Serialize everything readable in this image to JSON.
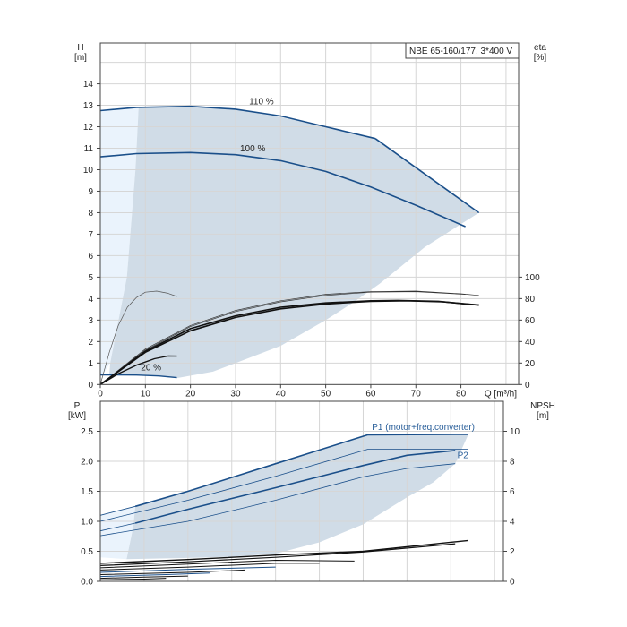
{
  "chart_data": [
    {
      "type": "line",
      "id": "head",
      "title": "NBE 65-160/177, 3*400 V",
      "ylabel": "H",
      "yunit": "[m]",
      "y2label": "eta",
      "y2unit": "[%]",
      "xlabel": "Q [m³/h]",
      "xlim": [
        0,
        92.8
      ],
      "ylim": [
        0,
        15.9
      ],
      "y2lim": [
        0,
        318
      ],
      "xticks": [
        0,
        10,
        20,
        30,
        40,
        50,
        60,
        70,
        80
      ],
      "yticks": [
        0,
        1,
        2,
        3,
        4,
        5,
        6,
        7,
        8,
        9,
        10,
        11,
        12,
        13,
        14
      ],
      "y2ticks": [
        0,
        20,
        40,
        60,
        80,
        100
      ],
      "grid": true,
      "regions": [
        {
          "name": "min-flow-region",
          "color": "#eaf3fc",
          "points": [
            [
              0,
              0.45
            ],
            [
              0,
              12.75
            ],
            [
              8.5,
              12.9
            ],
            [
              7.8,
              10
            ],
            [
              5.9,
              5
            ],
            [
              2.2,
              1
            ],
            [
              0.5,
              0.45
            ]
          ]
        },
        {
          "name": "operating-region",
          "color": "#d0dce7",
          "points": [
            [
              8.5,
              12.9
            ],
            [
              20,
              12.95
            ],
            [
              30,
              12.8
            ],
            [
              40,
              12.45
            ],
            [
              50,
              12.0
            ],
            [
              61,
              11.45
            ],
            [
              84,
              8.0
            ],
            [
              72,
              6.4
            ],
            [
              62,
              4.7
            ],
            [
              56,
              3.8
            ],
            [
              50,
              3.0
            ],
            [
              40,
              1.8
            ],
            [
              30,
              1.0
            ],
            [
              25,
              0.6
            ],
            [
              17,
              0.3
            ],
            [
              12,
              0.4
            ],
            [
              2,
              0.45
            ],
            [
              2.2,
              1
            ],
            [
              5.9,
              5
            ],
            [
              7.8,
              10
            ]
          ]
        }
      ],
      "series": [
        {
          "name": "110 %",
          "axis": "H",
          "color": "#1a4f8a",
          "width": 1.6,
          "label_at": [
            33,
            13.05
          ],
          "points": [
            [
              0,
              12.75
            ],
            [
              8,
              12.9
            ],
            [
              20,
              12.95
            ],
            [
              30,
              12.82
            ],
            [
              40,
              12.5
            ],
            [
              50,
              12.0
            ],
            [
              61,
              11.45
            ]
          ]
        },
        {
          "name": "max-power-limit",
          "axis": "H",
          "color": "#1a4f8a",
          "width": 1.6,
          "points": [
            [
              61,
              11.45
            ],
            [
              84,
              8.0
            ]
          ]
        },
        {
          "name": "100 %",
          "axis": "H",
          "color": "#1a4f8a",
          "width": 1.6,
          "label_at": [
            31,
            10.85
          ],
          "points": [
            [
              0,
              10.6
            ],
            [
              8,
              10.75
            ],
            [
              20,
              10.8
            ],
            [
              30,
              10.7
            ],
            [
              40,
              10.42
            ],
            [
              50,
              9.92
            ],
            [
              60,
              9.2
            ],
            [
              70,
              8.35
            ],
            [
              81,
              7.35
            ]
          ]
        },
        {
          "name": "20 %",
          "axis": "H",
          "color": "#1a4f8a",
          "width": 1.4,
          "label_at": [
            9,
            0.65
          ],
          "points": [
            [
              0,
              0.45
            ],
            [
              8,
              0.44
            ],
            [
              13,
              0.4
            ],
            [
              17,
              0.32
            ]
          ]
        },
        {
          "name": "eta-min-speed",
          "axis": "eta",
          "color": "#555",
          "width": 0.7,
          "points": [
            [
              0,
              0
            ],
            [
              2,
              30
            ],
            [
              4,
              55
            ],
            [
              6,
              72
            ],
            [
              8,
              81
            ],
            [
              10,
              86
            ],
            [
              12.5,
              87
            ],
            [
              15,
              85
            ],
            [
              17,
              82
            ]
          ]
        },
        {
          "name": "eta-20",
          "axis": "eta",
          "color": "#111",
          "width": 1.4,
          "points": [
            [
              0,
              0
            ],
            [
              4,
              10
            ],
            [
              8,
              18
            ],
            [
              12,
              24
            ],
            [
              15,
              26.5
            ],
            [
              17,
              26.4
            ]
          ]
        },
        {
          "name": "eta-upper-thin",
          "axis": "eta",
          "color": "#333",
          "width": 0.7,
          "points": [
            [
              0,
              0
            ],
            [
              10,
              33
            ],
            [
              20,
              55
            ],
            [
              30,
              69
            ],
            [
              40,
              78
            ],
            [
              50,
              84
            ],
            [
              60,
              86.5
            ],
            [
              70,
              87
            ],
            [
              80,
              84.5
            ],
            [
              84,
              83
            ]
          ]
        },
        {
          "name": "eta-upper-thin-2",
          "axis": "eta",
          "color": "#333",
          "width": 0.7,
          "points": [
            [
              0,
              0
            ],
            [
              10,
              32
            ],
            [
              20,
              54
            ],
            [
              30,
              68
            ],
            [
              40,
              77
            ],
            [
              50,
              83
            ],
            [
              60,
              86
            ],
            [
              70,
              86.5
            ],
            [
              81,
              84
            ]
          ]
        },
        {
          "name": "eta-100",
          "axis": "eta",
          "color": "#111",
          "width": 1.6,
          "points": [
            [
              0,
              0
            ],
            [
              10,
              31
            ],
            [
              20,
              52
            ],
            [
              30,
              64
            ],
            [
              40,
              72
            ],
            [
              50,
              76
            ],
            [
              60,
              78
            ],
            [
              66,
              78.3
            ],
            [
              75,
              77.5
            ],
            [
              81,
              75
            ],
            [
              84,
              74
            ]
          ]
        },
        {
          "name": "eta-110",
          "axis": "eta",
          "color": "#111",
          "width": 1.6,
          "points": [
            [
              0,
              0
            ],
            [
              10,
              30
            ],
            [
              20,
              50
            ],
            [
              30,
              62.5
            ],
            [
              40,
              70.5
            ],
            [
              50,
              75
            ],
            [
              60,
              77.5
            ],
            [
              68,
              78
            ],
            [
              76,
              77
            ],
            [
              84,
              74
            ]
          ]
        }
      ]
    },
    {
      "type": "line",
      "id": "power",
      "ylabel": "P",
      "yunit": "[kW]",
      "y2label": "NPSH",
      "y2unit": "[m]",
      "xlim": [
        0,
        92
      ],
      "ylim": [
        0,
        3.0
      ],
      "y2lim": [
        0,
        12
      ],
      "yticks": [
        "0.0",
        "0.5",
        "1.0",
        "1.5",
        "2.0",
        "2.5"
      ],
      "y2ticks": [
        0,
        2,
        4,
        6,
        8,
        10
      ],
      "grid": true,
      "regions": [
        {
          "name": "min-flow-region",
          "color": "#eaf3fc",
          "points": [
            [
              0,
              1.1
            ],
            [
              8,
              1.25
            ],
            [
              7.5,
              0.9
            ],
            [
              6,
              0.37
            ],
            [
              0,
              0.4
            ]
          ]
        },
        {
          "name": "operating-region",
          "color": "#d0dce7",
          "points": [
            [
              8,
              1.25
            ],
            [
              20,
              1.5
            ],
            [
              40,
              1.96
            ],
            [
              61,
              2.44
            ],
            [
              84,
              2.45
            ],
            [
              81,
              1.96
            ],
            [
              76,
              1.65
            ],
            [
              70,
              1.4
            ],
            [
              60,
              0.95
            ],
            [
              50,
              0.65
            ],
            [
              40,
              0.46
            ],
            [
              30,
              0.41
            ],
            [
              20,
              0.39
            ],
            [
              6,
              0.37
            ],
            [
              7.5,
              0.9
            ]
          ]
        }
      ],
      "series": [
        {
          "name": "P1 (motor+freq.converter)",
          "axis": "P",
          "color": "#1a4f8a",
          "width": 1.6,
          "label_at": [
            62,
            2.52
          ],
          "points": [
            [
              8,
              1.25
            ],
            [
              20,
              1.5
            ],
            [
              40,
              1.96
            ],
            [
              61,
              2.44
            ],
            [
              84,
              2.45
            ]
          ]
        },
        {
          "name": "p1-left-thin",
          "axis": "P",
          "color": "#1a4f8a",
          "width": 0.8,
          "points": [
            [
              0,
              1.1
            ],
            [
              8,
              1.25
            ]
          ]
        },
        {
          "name": "p1-lower-thin",
          "axis": "P",
          "color": "#1a4f8a",
          "width": 0.8,
          "points": [
            [
              0,
              1.0
            ],
            [
              20,
              1.35
            ],
            [
              40,
              1.75
            ],
            [
              61,
              2.2
            ],
            [
              84,
              2.2
            ]
          ]
        },
        {
          "name": "P2",
          "axis": "P",
          "color": "#1a4f8a",
          "width": 1.6,
          "label_at": [
            81.5,
            2.05
          ],
          "points": [
            [
              8,
              0.97
            ],
            [
              20,
              1.2
            ],
            [
              40,
              1.56
            ],
            [
              60,
              1.93
            ],
            [
              70,
              2.1
            ],
            [
              81,
              2.18
            ]
          ]
        },
        {
          "name": "p2-left-thin",
          "axis": "P",
          "color": "#1a4f8a",
          "width": 0.8,
          "points": [
            [
              0,
              0.84
            ],
            [
              8,
              0.97
            ]
          ]
        },
        {
          "name": "p2-lower-thin",
          "axis": "P",
          "color": "#1a4f8a",
          "width": 0.8,
          "points": [
            [
              0,
              0.76
            ],
            [
              20,
              1.0
            ],
            [
              40,
              1.35
            ],
            [
              60,
              1.74
            ],
            [
              70,
              1.88
            ],
            [
              81,
              1.96
            ]
          ]
        },
        {
          "name": "npsh-110",
          "axis": "NPSH",
          "color": "#111",
          "width": 1.4,
          "points": [
            [
              0,
              1.2
            ],
            [
              20,
              1.45
            ],
            [
              40,
              1.75
            ],
            [
              60,
              2.0
            ],
            [
              84,
              2.72
            ]
          ]
        },
        {
          "name": "npsh-100",
          "axis": "NPSH",
          "color": "#111",
          "width": 1.2,
          "points": [
            [
              0,
              1.05
            ],
            [
              20,
              1.3
            ],
            [
              40,
              1.6
            ],
            [
              60,
              1.95
            ],
            [
              81,
              2.5
            ]
          ]
        },
        {
          "name": "npsh-90",
          "axis": "NPSH",
          "color": "#111",
          "width": 1.0,
          "points": [
            [
              0,
              0.9
            ],
            [
              20,
              1.15
            ],
            [
              40,
              1.4
            ],
            [
              58,
              1.35
            ]
          ]
        },
        {
          "name": "npsh-80",
          "axis": "NPSH",
          "color": "#111",
          "width": 1.0,
          "points": [
            [
              0,
              0.75
            ],
            [
              20,
              0.95
            ],
            [
              40,
              1.2
            ],
            [
              50,
              1.2
            ]
          ]
        },
        {
          "name": "npsh-70",
          "axis": "NPSH",
          "color": "#1a4f8a",
          "width": 1.0,
          "points": [
            [
              0,
              0.6
            ],
            [
              20,
              0.8
            ],
            [
              40,
              0.95
            ]
          ]
        },
        {
          "name": "npsh-60",
          "axis": "NPSH",
          "color": "#111",
          "width": 1.0,
          "points": [
            [
              0,
              0.45
            ],
            [
              20,
              0.6
            ],
            [
              33,
              0.75
            ]
          ]
        },
        {
          "name": "npsh-50",
          "axis": "NPSH",
          "color": "#1a4f8a",
          "width": 1.0,
          "points": [
            [
              0,
              0.32
            ],
            [
              15,
              0.45
            ],
            [
              25,
              0.55
            ]
          ]
        },
        {
          "name": "npsh-40",
          "axis": "NPSH",
          "color": "#111",
          "width": 1.0,
          "points": [
            [
              0,
              0.2
            ],
            [
              10,
              0.28
            ],
            [
              20,
              0.35
            ]
          ]
        },
        {
          "name": "npsh-30",
          "axis": "NPSH",
          "color": "#111",
          "width": 1.0,
          "points": [
            [
              0,
              0.1
            ],
            [
              10,
              0.15
            ],
            [
              15,
              0.2
            ]
          ]
        }
      ]
    }
  ]
}
